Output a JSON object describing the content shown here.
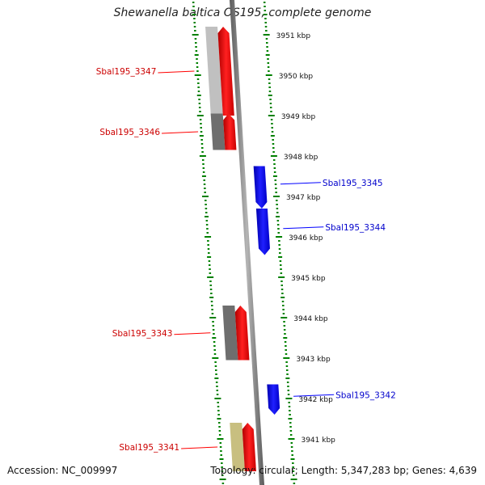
{
  "title": "Shewanella baltica OS195, complete genome",
  "footer": {
    "accession": "Accession: NC_009997",
    "summary": "Topology: circular; Length: 5,347,283 bp; Genes: 4,639"
  },
  "colors": {
    "forward_strand": "#ff0000",
    "reverse_strand": "#0000ff",
    "tick_marks": "#008000",
    "backbone": "#808080"
  },
  "scale": {
    "unit": "kbp",
    "ticks": [
      {
        "kbp": 3951,
        "label": "3951 kbp"
      },
      {
        "kbp": 3950,
        "label": "3950 kbp"
      },
      {
        "kbp": 3949,
        "label": "3949 kbp"
      },
      {
        "kbp": 3948,
        "label": "3948 kbp"
      },
      {
        "kbp": 3947,
        "label": "3947 kbp"
      },
      {
        "kbp": 3946,
        "label": "3946 kbp"
      },
      {
        "kbp": 3945,
        "label": "3945 kbp"
      },
      {
        "kbp": 3944,
        "label": "3944 kbp"
      },
      {
        "kbp": 3943,
        "label": "3943 kbp"
      },
      {
        "kbp": 3942,
        "label": "3942 kbp"
      },
      {
        "kbp": 3941,
        "label": "3941 kbp"
      }
    ]
  },
  "genes": [
    {
      "name": "Sbal195_3347",
      "strand": "forward",
      "start_kbp": 3949.0,
      "end_kbp": 3951.2,
      "class_color": "#c0c0c0"
    },
    {
      "name": "Sbal195_3346",
      "strand": "forward",
      "start_kbp": 3948.15,
      "end_kbp": 3949.05,
      "class_color": "#6e6e6e"
    },
    {
      "name": "Sbal195_3345",
      "strand": "reverse",
      "start_kbp": 3946.7,
      "end_kbp": 3947.75,
      "class_color": null
    },
    {
      "name": "Sbal195_3344",
      "strand": "reverse",
      "start_kbp": 3945.55,
      "end_kbp": 3946.7,
      "class_color": null
    },
    {
      "name": "Sbal195_3343",
      "strand": "forward",
      "start_kbp": 3942.95,
      "end_kbp": 3944.3,
      "class_color": "#6e6e6e"
    },
    {
      "name": "Sbal195_3342",
      "strand": "reverse",
      "start_kbp": 3941.6,
      "end_kbp": 3942.35,
      "class_color": null
    },
    {
      "name": "Sbal195_3341",
      "strand": "forward",
      "start_kbp": 3940.2,
      "end_kbp": 3941.4,
      "class_color": "#c8bf80"
    }
  ]
}
